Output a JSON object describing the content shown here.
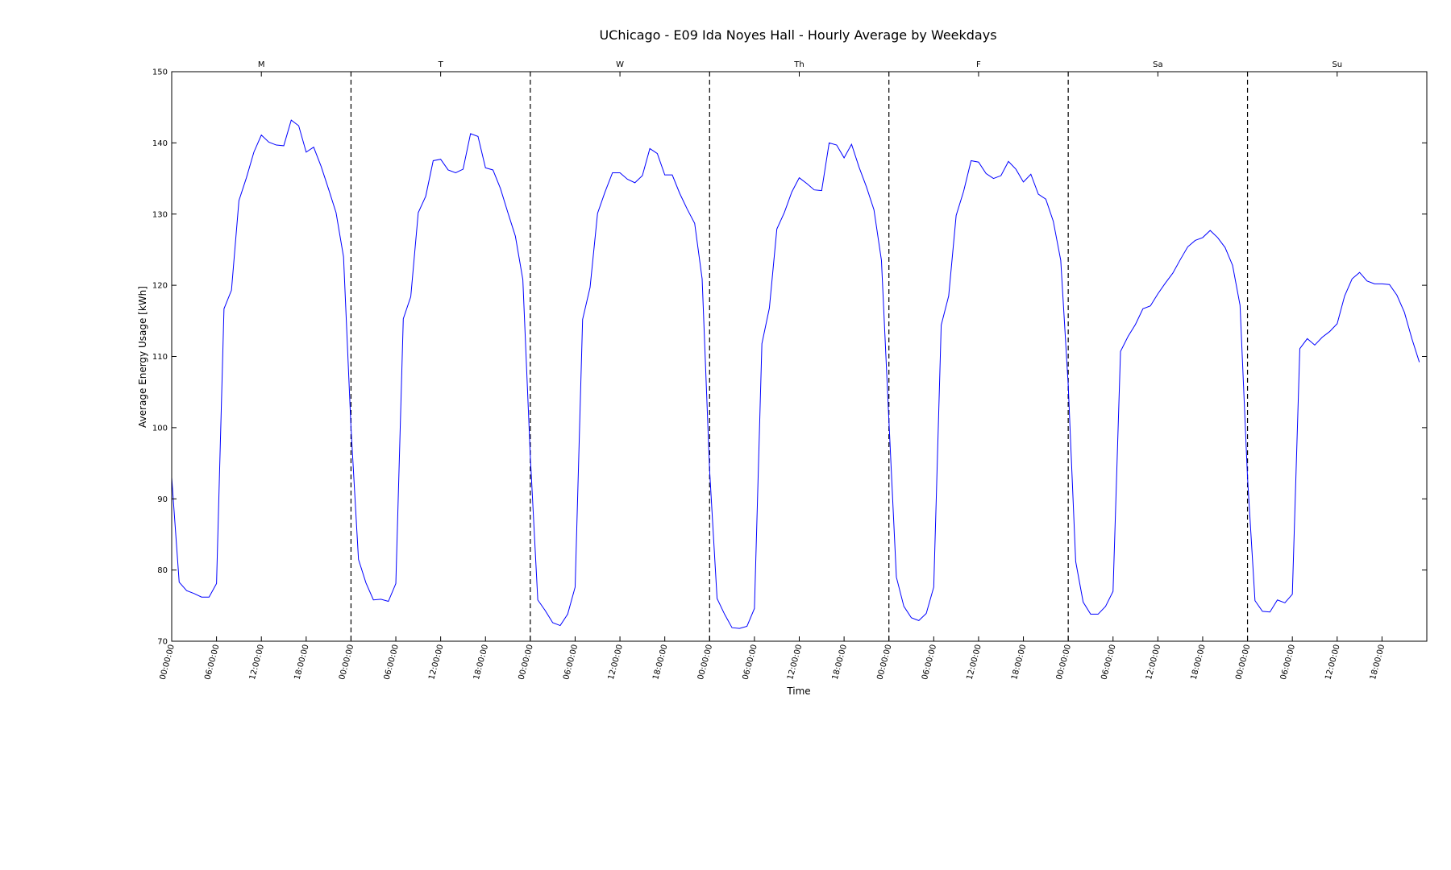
{
  "chart_data": {
    "type": "line",
    "title": "UChicago - E09 Ida Noyes Hall - Hourly Average by Weekdays",
    "xlabel": "Time",
    "ylabel": "Average Energy Usage [kWh]",
    "ylim": [
      70,
      150
    ],
    "yticks": [
      70,
      80,
      90,
      100,
      110,
      120,
      130,
      140,
      150
    ],
    "grid": false,
    "day_labels": [
      "M",
      "T",
      "W",
      "Th",
      "F",
      "Sa",
      "Su"
    ],
    "x_tick_labels": [
      "00:00:00",
      "06:00:00",
      "12:00:00",
      "18:00:00"
    ],
    "line_color": "#0000ff",
    "separator_style": "dashed",
    "series": [
      {
        "values": [
          93,
          78.3,
          77.1,
          76.7,
          76.2,
          76.2,
          78.1,
          116.7,
          119.3,
          131.9,
          135.1,
          138.7,
          141.1,
          140.1,
          139.7,
          139.6,
          143.2,
          142.4,
          138.7,
          139.4,
          136.7,
          133.5,
          130.2,
          124,
          100,
          81.5,
          78.2,
          75.8,
          75.9,
          75.6,
          78.1,
          115.3,
          118.4,
          130.2,
          132.5,
          137.5,
          137.7,
          136.2,
          135.8,
          136.3,
          141.3,
          140.9,
          136.5,
          136.2,
          133.6,
          130.2,
          126.9,
          120.8,
          96,
          75.8,
          74.3,
          72.6,
          72.2,
          73.8,
          77.6,
          115.2,
          119.7,
          130.1,
          133.1,
          135.8,
          135.8,
          134.9,
          134.4,
          135.4,
          139.2,
          138.5,
          135.5,
          135.5,
          132.9,
          130.7,
          128.7,
          120.9,
          94,
          76,
          73.8,
          71.9,
          71.8,
          72.1,
          74.6,
          111.8,
          116.8,
          127.9,
          130.2,
          133.1,
          135.1,
          134.3,
          133.4,
          133.3,
          140,
          139.7,
          137.9,
          139.8,
          136.6,
          133.8,
          130.6,
          123.5,
          101,
          79,
          74.9,
          73.3,
          72.9,
          73.9,
          77.6,
          114.4,
          118.5,
          129.8,
          133.2,
          137.5,
          137.3,
          135.7,
          135,
          135.4,
          137.4,
          136.3,
          134.5,
          135.6,
          132.8,
          132.1,
          129,
          123.5,
          106,
          81.2,
          75.5,
          73.8,
          73.8,
          74.9,
          77,
          110.7,
          112.8,
          114.5,
          116.7,
          117.1,
          118.8,
          120.3,
          121.7,
          123.6,
          125.4,
          126.3,
          126.7,
          127.7,
          126.7,
          125.3,
          122.8,
          117.2,
          93,
          75.7,
          74.2,
          74.1,
          75.8,
          75.4,
          76.6,
          111.1,
          112.5,
          111.6,
          112.7,
          113.5,
          114.6,
          118.5,
          120.9,
          121.8,
          120.6,
          120.2,
          120.2,
          120.1,
          118.6,
          116.2,
          112.5,
          109.2
        ]
      }
    ]
  }
}
